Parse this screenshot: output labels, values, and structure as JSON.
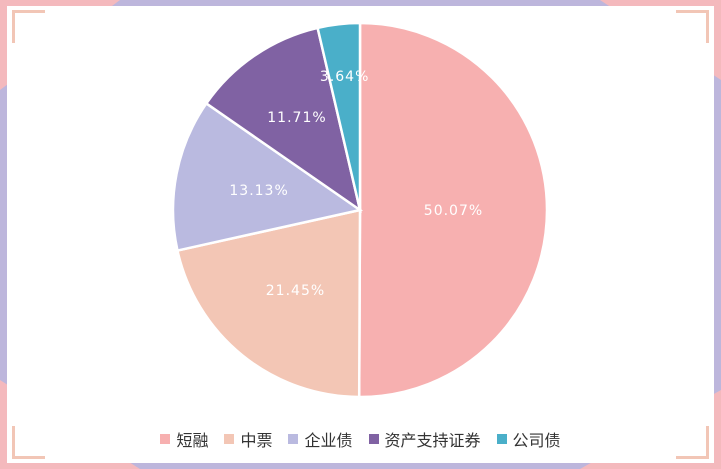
{
  "chart_data": {
    "type": "pie",
    "title": "",
    "categories": [
      "短融",
      "中票",
      "企业债",
      "资产支持证券",
      "公司债"
    ],
    "values": [
      50.07,
      21.45,
      13.13,
      11.71,
      3.64
    ],
    "labels": [
      "50.07%",
      "21.45%",
      "13.13%",
      "11.71%",
      "3.64%"
    ],
    "colors": [
      "#f7b0b0",
      "#f3c6b5",
      "#babae0",
      "#8062a3",
      "#4aafc9"
    ],
    "legend_position": "bottom"
  }
}
